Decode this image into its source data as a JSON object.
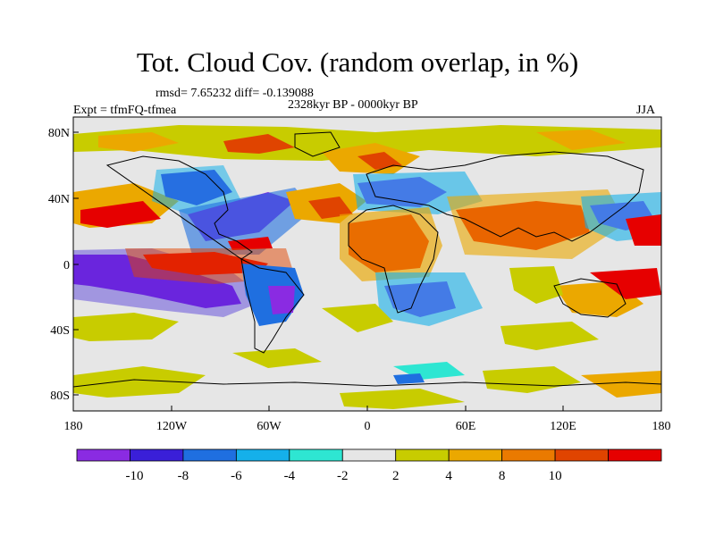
{
  "title": "Tot. Cloud Cov. (random overlap, in %)",
  "stats_line": "rmsd= 7.65232 diff= -0.139088",
  "period": "2328kyr BP - 0000kyr BP",
  "experiment": "Expt = tfmFQ-tfmea",
  "season": "JJA",
  "lat_ticks": [
    "80N",
    "40N",
    "0",
    "40S",
    "80S"
  ],
  "lon_ticks": [
    "180",
    "120W",
    "60W",
    "0",
    "60E",
    "120E",
    "180"
  ],
  "colorbar": {
    "colors": [
      "#8a2be2",
      "#3a1fd8",
      "#1f6fe0",
      "#15b0ea",
      "#2ee6d2",
      "#e6e6e6",
      "#c8cc00",
      "#eba800",
      "#ea7a00",
      "#e04400",
      "#e60000"
    ],
    "labels": [
      "-10",
      "-8",
      "-6",
      "-4",
      "-2",
      "2",
      "4",
      "8",
      "10"
    ]
  }
}
